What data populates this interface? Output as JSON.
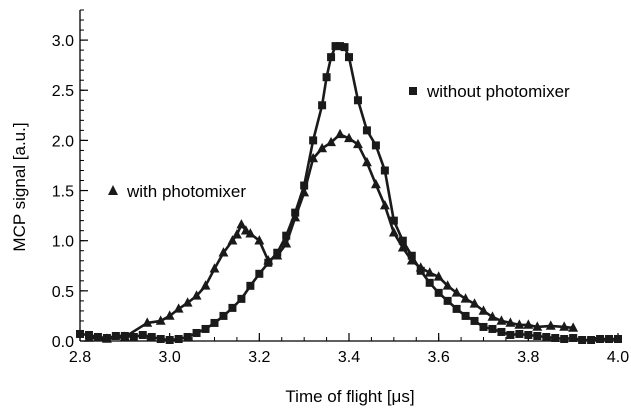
{
  "chart_data": {
    "type": "line",
    "title": "",
    "xlabel": "Time of flight [μs]",
    "ylabel": "MCP signal [a.u.]",
    "xlim": [
      2.8,
      4.0
    ],
    "ylim": [
      0.0,
      3.3
    ],
    "x_ticks": [
      "2.8",
      "3.0",
      "3.2",
      "3.4",
      "3.6",
      "3.8",
      "4.0"
    ],
    "y_ticks": [
      "0.0",
      "0.5",
      "1.0",
      "1.5",
      "2.0",
      "2.5",
      "3.0"
    ],
    "grid": false,
    "series": [
      {
        "name": "without photomixer",
        "marker": "square",
        "legend_marker_glyph": "■",
        "color": "#1a1a1a",
        "points": [
          [
            2.8,
            0.07
          ],
          [
            2.82,
            0.06
          ],
          [
            2.84,
            0.04
          ],
          [
            2.86,
            0.03
          ],
          [
            2.88,
            0.05
          ],
          [
            2.9,
            0.05
          ],
          [
            2.92,
            0.04
          ],
          [
            2.94,
            0.06
          ],
          [
            2.96,
            0.04
          ],
          [
            2.98,
            0.02
          ],
          [
            3.0,
            0.01
          ],
          [
            3.02,
            0.02
          ],
          [
            3.04,
            0.04
          ],
          [
            3.06,
            0.08
          ],
          [
            3.08,
            0.12
          ],
          [
            3.1,
            0.18
          ],
          [
            3.12,
            0.25
          ],
          [
            3.14,
            0.33
          ],
          [
            3.16,
            0.42
          ],
          [
            3.18,
            0.55
          ],
          [
            3.2,
            0.67
          ],
          [
            3.22,
            0.78
          ],
          [
            3.24,
            0.88
          ],
          [
            3.26,
            1.05
          ],
          [
            3.28,
            1.28
          ],
          [
            3.3,
            1.55
          ],
          [
            3.32,
            2.0
          ],
          [
            3.34,
            2.35
          ],
          [
            3.35,
            2.63
          ],
          [
            3.36,
            2.83
          ],
          [
            3.37,
            2.94
          ],
          [
            3.38,
            2.94
          ],
          [
            3.39,
            2.93
          ],
          [
            3.4,
            2.83
          ],
          [
            3.42,
            2.4
          ],
          [
            3.44,
            2.1
          ],
          [
            3.46,
            1.95
          ],
          [
            3.48,
            1.7
          ],
          [
            3.5,
            1.2
          ],
          [
            3.52,
            1.0
          ],
          [
            3.54,
            0.85
          ],
          [
            3.56,
            0.7
          ],
          [
            3.58,
            0.58
          ],
          [
            3.6,
            0.48
          ],
          [
            3.62,
            0.4
          ],
          [
            3.64,
            0.32
          ],
          [
            3.66,
            0.25
          ],
          [
            3.68,
            0.2
          ],
          [
            3.7,
            0.14
          ],
          [
            3.72,
            0.12
          ],
          [
            3.74,
            0.09
          ],
          [
            3.76,
            0.06
          ],
          [
            3.78,
            0.07
          ],
          [
            3.8,
            0.06
          ],
          [
            3.82,
            0.05
          ],
          [
            3.84,
            0.04
          ],
          [
            3.86,
            0.03
          ],
          [
            3.88,
            0.02
          ],
          [
            3.9,
            0.03
          ],
          [
            3.92,
            0.01
          ],
          [
            3.94,
            0.01
          ],
          [
            3.96,
            0.02
          ],
          [
            3.98,
            0.02
          ],
          [
            4.0,
            0.02
          ]
        ]
      },
      {
        "name": "with photomixer",
        "marker": "triangle",
        "legend_marker_glyph": "▲",
        "color": "#1a1a1a",
        "points": [
          [
            2.82,
            0.03
          ],
          [
            2.86,
            0.02
          ],
          [
            2.9,
            0.04
          ],
          [
            2.95,
            0.18
          ],
          [
            2.98,
            0.2
          ],
          [
            3.0,
            0.25
          ],
          [
            3.02,
            0.32
          ],
          [
            3.04,
            0.38
          ],
          [
            3.06,
            0.45
          ],
          [
            3.08,
            0.55
          ],
          [
            3.1,
            0.72
          ],
          [
            3.12,
            0.88
          ],
          [
            3.14,
            1.0
          ],
          [
            3.15,
            1.06
          ],
          [
            3.16,
            1.16
          ],
          [
            3.17,
            1.1
          ],
          [
            3.18,
            1.07
          ],
          [
            3.2,
            1.0
          ],
          [
            3.22,
            0.8
          ],
          [
            3.24,
            0.85
          ],
          [
            3.26,
            0.97
          ],
          [
            3.28,
            1.23
          ],
          [
            3.3,
            1.48
          ],
          [
            3.32,
            1.82
          ],
          [
            3.34,
            1.92
          ],
          [
            3.36,
            1.98
          ],
          [
            3.38,
            2.06
          ],
          [
            3.4,
            2.02
          ],
          [
            3.42,
            1.96
          ],
          [
            3.44,
            1.78
          ],
          [
            3.46,
            1.56
          ],
          [
            3.48,
            1.35
          ],
          [
            3.5,
            1.08
          ],
          [
            3.52,
            0.93
          ],
          [
            3.54,
            0.8
          ],
          [
            3.56,
            0.73
          ],
          [
            3.58,
            0.68
          ],
          [
            3.6,
            0.64
          ],
          [
            3.62,
            0.55
          ],
          [
            3.64,
            0.48
          ],
          [
            3.66,
            0.42
          ],
          [
            3.68,
            0.37
          ],
          [
            3.7,
            0.3
          ],
          [
            3.72,
            0.24
          ],
          [
            3.74,
            0.2
          ],
          [
            3.76,
            0.18
          ],
          [
            3.78,
            0.16
          ],
          [
            3.8,
            0.16
          ],
          [
            3.82,
            0.14
          ],
          [
            3.85,
            0.15
          ],
          [
            3.88,
            0.14
          ],
          [
            3.9,
            0.13
          ]
        ]
      }
    ],
    "legend": [
      {
        "series": 0,
        "placement": "upper-right",
        "label": "without photomixer"
      },
      {
        "series": 1,
        "placement": "middle-left",
        "label": "with photomixer"
      }
    ]
  }
}
